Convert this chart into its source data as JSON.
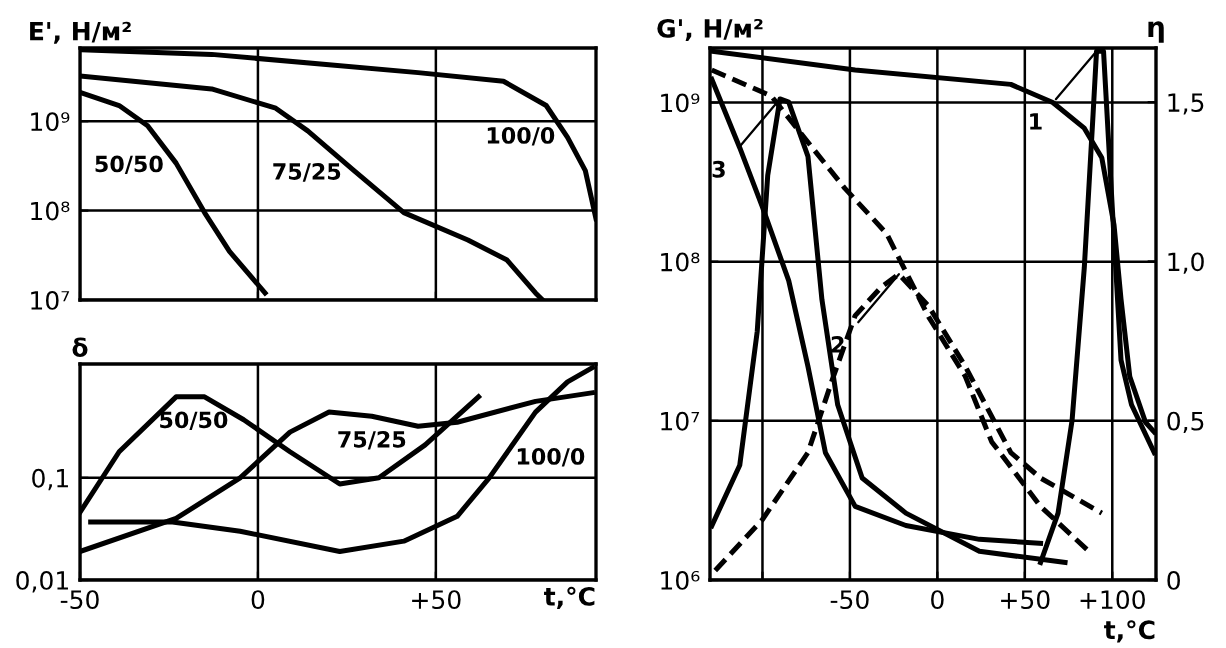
{
  "chart_data": [
    {
      "type": "line",
      "ylabel": "E', Н/м²",
      "log": "y",
      "grid": true,
      "tick_labels": "y",
      "xlim": [
        -50,
        95
      ],
      "xticks": [
        -50,
        0,
        50
      ],
      "ylim": [
        10000000.0,
        6600000000.0
      ],
      "yticks": [
        {
          "value": 10000000.0,
          "label": "10⁷"
        },
        {
          "value": 100000000.0,
          "label": "10⁸"
        },
        {
          "value": 1000000000.0,
          "label": "10⁹"
        }
      ],
      "series": [
        {
          "name": "50/50",
          "color": "#000000",
          "x": [
            -50,
            -39,
            -31,
            -23,
            -15,
            -8,
            2
          ],
          "values": [
            2100000000.0,
            1500000000.0,
            890000000.0,
            340000000.0,
            95000000.0,
            35000000.0,
            12000000.0
          ]
        },
        {
          "name": "75/25",
          "color": "#000000",
          "x": [
            -50,
            -13,
            5,
            14,
            27,
            41,
            59,
            70,
            78,
            80
          ],
          "values": [
            3200000000.0,
            2300000000.0,
            1400000000.0,
            780000000.0,
            280000000.0,
            95000000.0,
            47000000.0,
            28000000.0,
            12000000.0,
            10000000.0
          ]
        },
        {
          "name": "100/0",
          "color": "#000000",
          "x": [
            -49,
            -13,
            45,
            69,
            81,
            87,
            92,
            95
          ],
          "values": [
            6300000000.0,
            5600000000.0,
            3500000000.0,
            2800000000.0,
            1500000000.0,
            660000000.0,
            280000000.0,
            81000000.0
          ]
        }
      ]
    },
    {
      "type": "line",
      "ylabel": "δ",
      "xlabel": "t,°C",
      "log": "y",
      "grid": true,
      "xlim": [
        -50,
        95
      ],
      "xticks": [
        -50,
        0,
        {
          "value": 50,
          "label": "+50"
        }
      ],
      "ylim": [
        0.01,
        1.3
      ],
      "yticks": [
        {
          "value": 0.01,
          "label": "0,01"
        },
        {
          "value": 0.1,
          "label": "0,1"
        }
      ],
      "series": [
        {
          "name": "50/50",
          "color": "#000000",
          "x": [
            -50,
            -39,
            -23,
            -15,
            -4,
            9,
            23,
            34,
            47,
            62
          ],
          "values": [
            0.046,
            0.18,
            0.62,
            0.62,
            0.37,
            0.18,
            0.087,
            0.1,
            0.21,
            0.62
          ]
        },
        {
          "name": "75/25",
          "color": "#000000",
          "x": [
            -50,
            -23,
            -5,
            9,
            20,
            32,
            45,
            56,
            78,
            94
          ],
          "values": [
            0.019,
            0.04,
            0.1,
            0.28,
            0.44,
            0.4,
            0.32,
            0.35,
            0.56,
            0.68
          ]
        },
        {
          "name": "100/0",
          "color": "#000000",
          "x": [
            -47,
            -24,
            -5,
            23,
            41,
            56,
            65,
            78,
            87,
            94
          ],
          "values": [
            0.037,
            0.037,
            0.03,
            0.019,
            0.024,
            0.042,
            0.1,
            0.44,
            0.87,
            1.2
          ]
        }
      ]
    },
    {
      "type": "line",
      "ylabel": "G', Н/м²",
      "y2label": "η",
      "xlabel": "t,°C",
      "log": "y",
      "grid": true,
      "xlim": [
        -130,
        125
      ],
      "xticks": [
        {
          "value": -100,
          "label": null
        },
        -50,
        0,
        {
          "value": 50,
          "label": "+50"
        },
        {
          "value": 100,
          "label": "+100"
        }
      ],
      "ylim": [
        1000000.0,
        2200000000.0
      ],
      "yticks": [
        {
          "value": 1000000.0,
          "label": "10⁶"
        },
        {
          "value": 10000000.0,
          "label": "10⁷"
        },
        {
          "value": 100000000.0,
          "label": "10⁸"
        },
        {
          "value": 1000000000.0,
          "label": "10⁹"
        }
      ],
      "y2lim": [
        0,
        1.67
      ],
      "y2ticks": [
        0,
        {
          "value": 0.5,
          "label": "0,5"
        },
        {
          "value": 1.0,
          "label": "1,0"
        },
        {
          "value": 1.5,
          "label": "1,5"
        }
      ],
      "series": [
        {
          "color": "#000000",
          "line_style": "solid",
          "x": [
            -129,
            -47,
            42,
            66,
            84,
            94,
            101,
            105,
            110,
            119,
            124
          ],
          "values": [
            2100000000.0,
            1600000000.0,
            1300000000.0,
            1000000000.0,
            690000000.0,
            450000000.0,
            170000000.0,
            58000000.0,
            19000000.0,
            9800000.0,
            8500000.0
          ]
        },
        {
          "name": "1",
          "color": "#000000",
          "axis": "y2",
          "line_style": "solid",
          "x": [
            59,
            69,
            77,
            84,
            89,
            91,
            95,
            100,
            105,
            111,
            124
          ],
          "values": [
            0.055,
            0.21,
            0.5,
            0.98,
            1.46,
            1.66,
            1.66,
            1.17,
            0.69,
            0.55,
            0.4
          ]
        },
        {
          "color": "#000000",
          "line_style": "dashed",
          "x": [
            -129,
            -95,
            -64,
            -53,
            -29,
            -5,
            16,
            31,
            59,
            87
          ],
          "values": [
            1600000000.0,
            1100000000.0,
            410000000.0,
            290000000.0,
            150000000.0,
            45000000.0,
            19000000.0,
            7400000.0,
            2900000.0,
            1500000.0
          ]
        },
        {
          "name": "2",
          "color": "#000000",
          "axis": "y2",
          "line_style": "dashed",
          "x": [
            -127,
            -100,
            -74,
            -60,
            -47,
            -32,
            -22,
            -5,
            16,
            42,
            59,
            94
          ],
          "values": [
            0.03,
            0.19,
            0.4,
            0.63,
            0.83,
            0.92,
            0.96,
            0.86,
            0.67,
            0.4,
            0.32,
            0.21
          ]
        },
        {
          "color": "#000000",
          "line_style": "solid",
          "x": [
            -129,
            -113,
            -100,
            -85,
            -74,
            -64,
            -47,
            -18,
            24,
            59
          ],
          "values": [
            1400000000.0,
            520000000.0,
            220000000.0,
            76000000.0,
            22000000.0,
            6300000.0,
            2900000.0,
            2200000.0,
            1800000.0,
            1700000.0
          ]
        },
        {
          "name": "3",
          "color": "#000000",
          "axis": "y2",
          "line_style": "solid",
          "x": [
            -129,
            -113,
            -103,
            -97,
            -90,
            -85,
            -74,
            -66,
            -57,
            -43,
            -18,
            24,
            73
          ],
          "values": [
            0.17,
            0.36,
            0.78,
            1.27,
            1.51,
            1.5,
            1.33,
            0.88,
            0.55,
            0.32,
            0.21,
            0.09,
            0.055
          ]
        }
      ]
    }
  ]
}
